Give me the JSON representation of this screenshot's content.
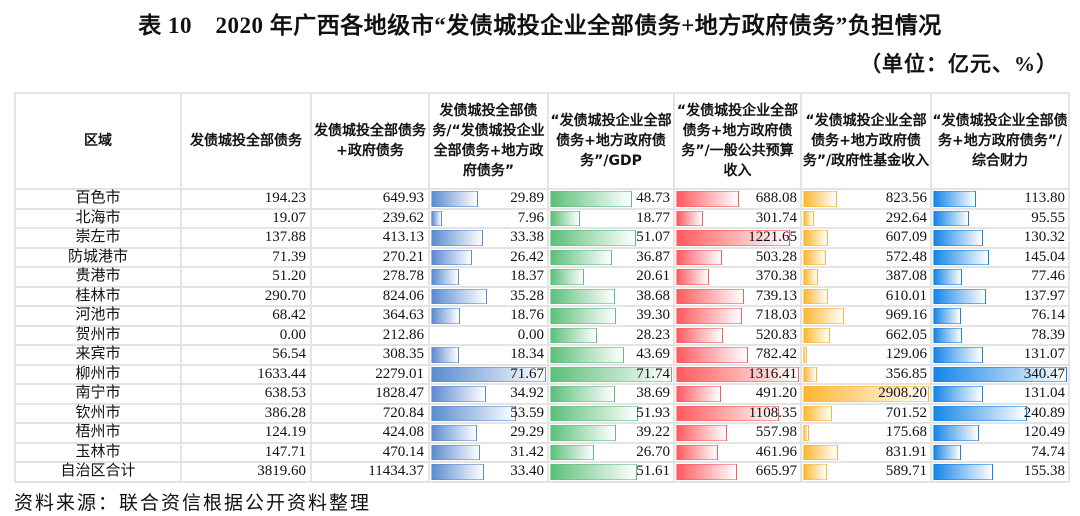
{
  "title": "表 10　2020 年广西各地级市“发债城投企业全部债务+地方政府债务”负担情况",
  "unit": "（单位：亿元、%）",
  "headers": [
    "区域",
    "发债城投全部债务",
    "发债城投全部债务+政府债务",
    "发债城投全部债务/“发债城投企业全部债务+地方政府债务”",
    "“发债城投企业全部债务+地方政府债务”/GDP",
    "“发债城投企业全部债务+地方政府债务”/一般公共预算收入",
    "“发债城投企业全部债务+地方政府债务”/政府性基金收入",
    "“发债城投企业全部债务+地方政府债务”/综合财力"
  ],
  "bar_colors": [
    "#5b8bd0",
    "#5cbf7a",
    "#ff5a5f",
    "#ffb62e",
    "#1485e8"
  ],
  "rows": [
    [
      "百色市",
      "194.23",
      "649.93",
      "29.89",
      "48.73",
      "688.08",
      "823.56",
      "113.80"
    ],
    [
      "北海市",
      "19.07",
      "239.62",
      "7.96",
      "18.77",
      "301.74",
      "292.64",
      "95.55"
    ],
    [
      "崇左市",
      "137.88",
      "413.13",
      "33.38",
      "51.07",
      "1221.65",
      "607.09",
      "130.32"
    ],
    [
      "防城港市",
      "71.39",
      "270.21",
      "26.42",
      "36.87",
      "503.28",
      "572.48",
      "145.04"
    ],
    [
      "贵港市",
      "51.20",
      "278.78",
      "18.37",
      "20.61",
      "370.38",
      "387.08",
      "77.46"
    ],
    [
      "桂林市",
      "290.70",
      "824.06",
      "35.28",
      "38.68",
      "739.13",
      "610.01",
      "137.97"
    ],
    [
      "河池市",
      "68.42",
      "364.63",
      "18.76",
      "39.30",
      "718.03",
      "969.16",
      "76.14"
    ],
    [
      "贺州市",
      "0.00",
      "212.86",
      "0.00",
      "28.23",
      "520.83",
      "662.05",
      "78.39"
    ],
    [
      "来宾市",
      "56.54",
      "308.35",
      "18.34",
      "43.69",
      "782.42",
      "129.06",
      "131.07"
    ],
    [
      "柳州市",
      "1633.44",
      "2279.01",
      "71.67",
      "71.74",
      "1316.41",
      "356.85",
      "340.47"
    ],
    [
      "南宁市",
      "638.53",
      "1828.47",
      "34.92",
      "38.69",
      "491.20",
      "2908.20",
      "131.04"
    ],
    [
      "钦州市",
      "386.28",
      "720.84",
      "53.59",
      "51.93",
      "1108.35",
      "701.52",
      "240.89"
    ],
    [
      "梧州市",
      "124.19",
      "424.08",
      "29.29",
      "39.22",
      "557.98",
      "175.68",
      "120.49"
    ],
    [
      "玉林市",
      "147.71",
      "470.14",
      "31.42",
      "26.70",
      "461.96",
      "831.91",
      "74.74"
    ],
    [
      "自治区合计",
      "3819.60",
      "11434.37",
      "33.40",
      "51.61",
      "665.97",
      "589.71",
      "155.38"
    ]
  ],
  "source": "资料来源：联合资信根据公开资料整理"
}
